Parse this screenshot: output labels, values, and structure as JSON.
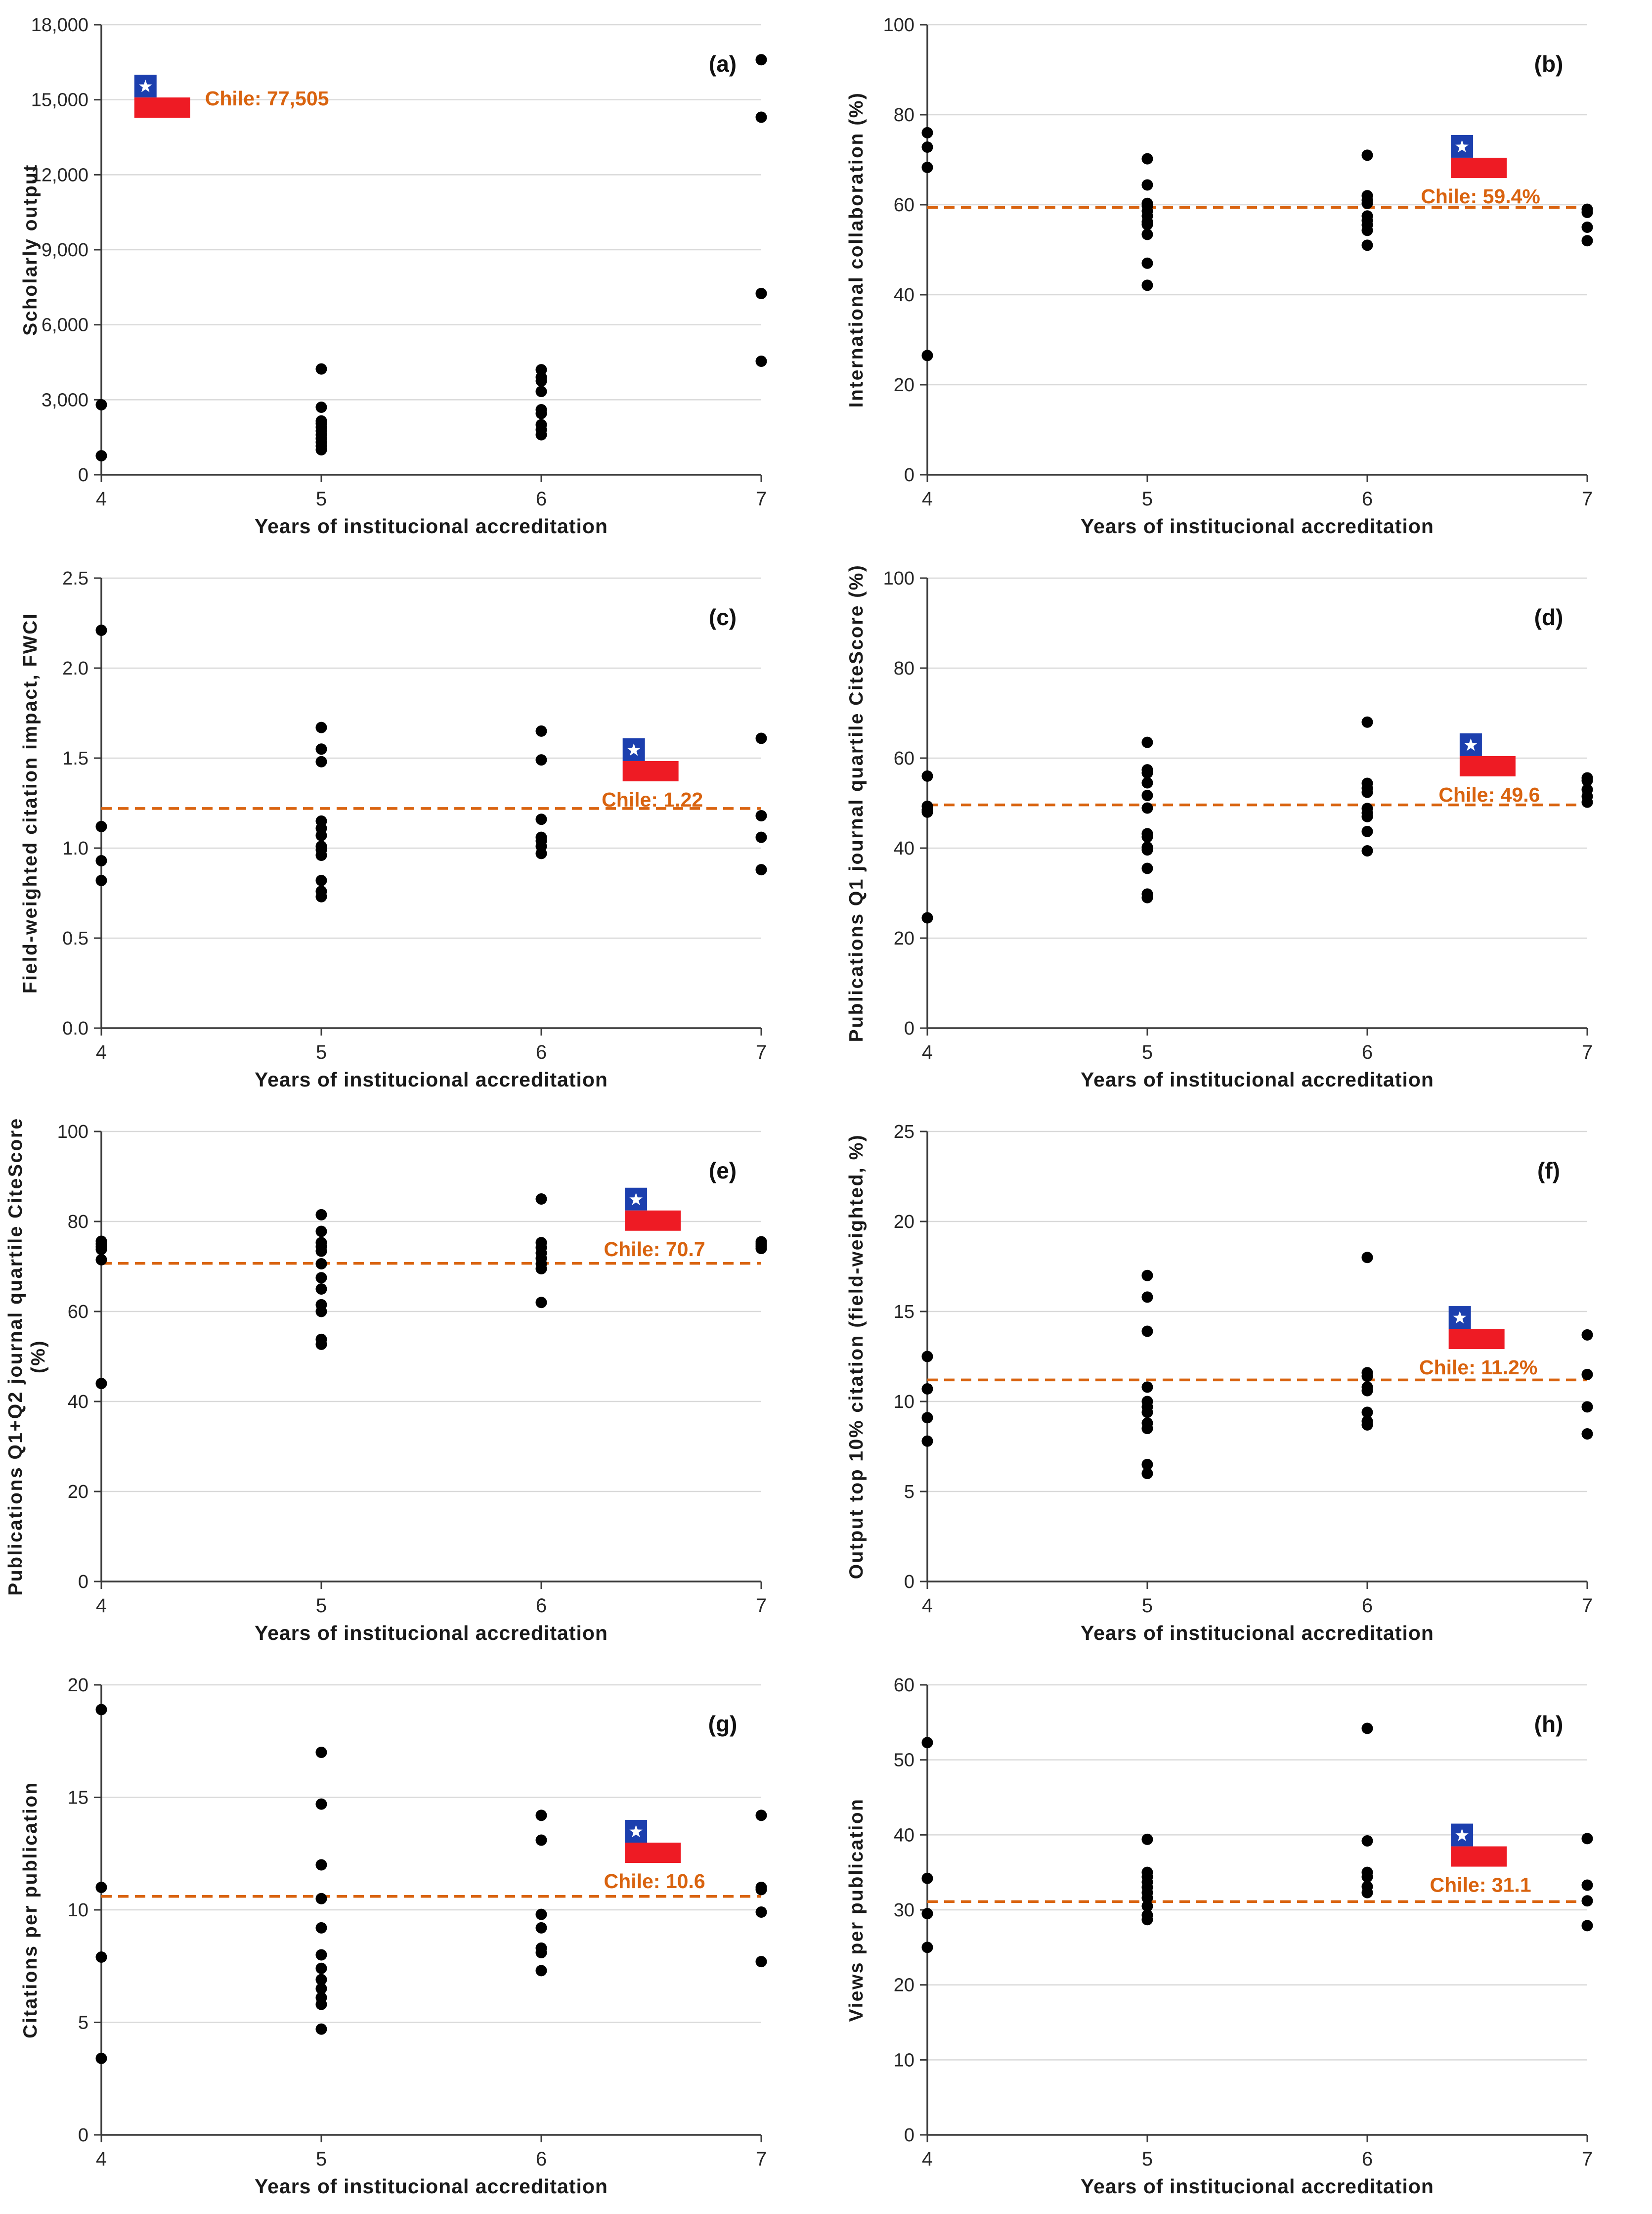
{
  "figure": {
    "x_label": "Years of institucional accreditation",
    "x_ticks": [
      4,
      5,
      6,
      7
    ],
    "xlim": [
      4,
      7
    ],
    "colors": {
      "accent_orange": "#D9630F",
      "flag_blue": "#1C3FAE",
      "flag_red": "#EE1B24",
      "point_black": "#000000",
      "grid_gray": "#D9D9D9",
      "axis_gray": "#3B3B3B",
      "text_dark": "#262626"
    }
  },
  "chart_data": [
    {
      "panel": "(a)",
      "type": "scatter",
      "ylabel": "Scholarly output",
      "ylim": [
        0,
        18000
      ],
      "ytick_step": 3000,
      "ytick_format": "comma",
      "xlabel": "Years of institucional accreditation",
      "xlim": [
        4,
        7
      ],
      "x_ticks": [
        4,
        5,
        6,
        7
      ],
      "grid": true,
      "legend": "none",
      "reference_line": null,
      "chile_label": "Chile: 77,505",
      "chile_value": 77505,
      "flag": {
        "x": 4.15,
        "y": 16000
      },
      "label_pos": "right",
      "points": {
        "4": [
          2800,
          760
        ],
        "5": [
          4230,
          2700,
          2150,
          2050,
          1900,
          1750,
          1600,
          1450,
          1300,
          1150,
          1000
        ],
        "6": [
          4200,
          3900,
          3750,
          3330,
          2600,
          2450,
          2000,
          1800,
          1600
        ],
        "7": [
          16600,
          14300,
          7250,
          4540
        ]
      }
    },
    {
      "panel": "(b)",
      "type": "scatter",
      "ylabel": "International collaboration (%)",
      "ylim": [
        0,
        100
      ],
      "ytick_step": 20,
      "ytick_format": "int",
      "xlabel": "Years of institucional accreditation",
      "xlim": [
        4,
        7
      ],
      "x_ticks": [
        4,
        5,
        6,
        7
      ],
      "grid": true,
      "legend": "none",
      "reference_line": 59.4,
      "chile_label": "Chile: 59.4%",
      "chile_value": 59.4,
      "flag": {
        "x": 6.38,
        "y": 75.5
      },
      "label_pos": "below",
      "points": {
        "4": [
          76,
          72.8,
          68.3,
          26.5
        ],
        "5": [
          70.2,
          64.4,
          60.3,
          59.7,
          58.6,
          57.5,
          56.2,
          55.6,
          53.4,
          47,
          42.1
        ],
        "6": [
          71,
          62,
          61,
          60.3,
          57.5,
          56.5,
          55.5,
          54.3,
          51
        ],
        "7": [
          59,
          58.3,
          55,
          52
        ]
      }
    },
    {
      "panel": "(c)",
      "type": "scatter",
      "ylabel": "Field-weighted citation impact, FWCI",
      "ylim": [
        0,
        2.5
      ],
      "ytick_step": 0.5,
      "ytick_format": "1dp",
      "xlabel": "Years of institucional accreditation",
      "xlim": [
        4,
        7
      ],
      "x_ticks": [
        4,
        5,
        6,
        7
      ],
      "grid": true,
      "legend": "none",
      "reference_line": 1.22,
      "chile_label": "Chile: 1.22",
      "chile_value": 1.22,
      "flag": {
        "x": 6.37,
        "y": 1.61
      },
      "label_pos": "below",
      "points": {
        "4": [
          2.21,
          1.12,
          0.93,
          0.82
        ],
        "5": [
          1.67,
          1.55,
          1.48,
          1.15,
          1.11,
          1.07,
          1.01,
          0.99,
          0.96,
          0.82,
          0.76,
          0.73
        ],
        "6": [
          1.65,
          1.49,
          1.16,
          1.06,
          1.04,
          1.01,
          0.97
        ],
        "7": [
          1.61,
          1.18,
          1.06,
          0.88
        ]
      }
    },
    {
      "panel": "(d)",
      "type": "scatter",
      "ylabel": "Publications Q1 journal quartile CiteScore (%)",
      "ylim": [
        0,
        100
      ],
      "ytick_step": 20,
      "ytick_format": "int",
      "xlabel": "Years of institucional accreditation",
      "xlim": [
        4,
        7
      ],
      "x_ticks": [
        4,
        5,
        6,
        7
      ],
      "grid": true,
      "legend": "none",
      "reference_line": 49.6,
      "chile_label": "Chile: 49.6",
      "chile_value": 49.6,
      "flag": {
        "x": 6.42,
        "y": 65.5
      },
      "label_pos": "below",
      "points": {
        "4": [
          56,
          49.3,
          48.5,
          48,
          24.5
        ],
        "5": [
          63.5,
          57.4,
          56.7,
          54.5,
          51.7,
          48.9,
          43.2,
          42.5,
          40.2,
          39.6,
          35.5,
          29.8,
          29
        ],
        "6": [
          68,
          54.4,
          53.3,
          52.4,
          48.8,
          47.8,
          47,
          43.7,
          39.4
        ],
        "7": [
          55.6,
          55,
          53,
          51.5,
          50.2
        ]
      }
    },
    {
      "panel": "(e)",
      "type": "scatter",
      "ylabel": "Publications Q1+Q2 journal quartile CiteScore\n(%)",
      "ylim": [
        0,
        100
      ],
      "ytick_step": 20,
      "ytick_format": "int",
      "xlabel": "Years of institucional accreditation",
      "xlim": [
        4,
        7
      ],
      "x_ticks": [
        4,
        5,
        6,
        7
      ],
      "grid": true,
      "legend": "none",
      "reference_line": 70.7,
      "chile_label": "Chile: 70.7",
      "chile_value": 70.7,
      "flag": {
        "x": 6.38,
        "y": 87.5
      },
      "label_pos": "below",
      "points": {
        "4": [
          75.6,
          75,
          74.4,
          73.8,
          71.5,
          44
        ],
        "5": [
          81.5,
          77.8,
          75.3,
          74.4,
          73.4,
          70.6,
          67.5,
          65,
          61.5,
          60,
          53.8,
          52.7
        ],
        "6": [
          85,
          75.3,
          74.2,
          73,
          71.8,
          70.6,
          69.5,
          62
        ],
        "7": [
          75.5,
          75,
          74.5,
          74
        ]
      }
    },
    {
      "panel": "(f)",
      "type": "scatter",
      "ylabel": "Output top 10% citation (field-weighted, %)",
      "ylim": [
        0,
        25
      ],
      "ytick_step": 5,
      "ytick_format": "int",
      "xlabel": "Years of institucional accreditation",
      "xlim": [
        4,
        7
      ],
      "x_ticks": [
        4,
        5,
        6,
        7
      ],
      "grid": true,
      "legend": "none",
      "reference_line": 11.2,
      "chile_label": "Chile: 11.2%",
      "chile_value": 11.2,
      "flag": {
        "x": 6.37,
        "y": 15.3
      },
      "label_pos": "below",
      "points": {
        "4": [
          12.5,
          10.7,
          9.1,
          7.8
        ],
        "5": [
          17,
          15.8,
          13.9,
          10.8,
          10,
          9.7,
          9.4,
          8.8,
          8.5,
          6.5,
          6
        ],
        "6": [
          18,
          11.6,
          11.4,
          10.8,
          10.6,
          9.4,
          8.9,
          8.7
        ],
        "7": [
          13.7,
          11.5,
          9.7,
          8.2
        ]
      }
    },
    {
      "panel": "(g)",
      "type": "scatter",
      "ylabel": "Citations per publication",
      "ylim": [
        0,
        20
      ],
      "ytick_step": 5,
      "ytick_format": "int",
      "xlabel": "Years of institucional accreditation",
      "xlim": [
        4,
        7
      ],
      "x_ticks": [
        4,
        5,
        6,
        7
      ],
      "grid": true,
      "legend": "none",
      "reference_line": 10.6,
      "chile_label": "Chile: 10.6",
      "chile_value": 10.6,
      "flag": {
        "x": 6.38,
        "y": 14
      },
      "label_pos": "below",
      "points": {
        "4": [
          18.9,
          11,
          7.9,
          3.4
        ],
        "5": [
          17,
          14.7,
          12,
          10.5,
          9.2,
          8,
          7.4,
          6.9,
          6.5,
          6.1,
          5.8,
          4.7
        ],
        "6": [
          14.2,
          13.1,
          9.8,
          9.2,
          8.3,
          8.1,
          7.3
        ],
        "7": [
          14.2,
          11,
          10.9,
          9.9,
          7.7
        ]
      }
    },
    {
      "panel": "(h)",
      "type": "scatter",
      "ylabel": "Views per publication",
      "ylim": [
        0,
        60
      ],
      "ytick_step": 10,
      "ytick_format": "int",
      "xlabel": "Years of institucional accreditation",
      "xlim": [
        4,
        7
      ],
      "x_ticks": [
        4,
        5,
        6,
        7
      ],
      "grid": true,
      "legend": "none",
      "reference_line": 31.1,
      "chile_label": "Chile: 31.1",
      "chile_value": 31.1,
      "flag": {
        "x": 6.38,
        "y": 41.5
      },
      "label_pos": "below",
      "points": {
        "4": [
          52.3,
          34.2,
          29.5,
          25
        ],
        "5": [
          39.4,
          35,
          34.4,
          33.7,
          33,
          32.3,
          31.6,
          30.5,
          29.3,
          28.7
        ],
        "6": [
          54.2,
          39.2,
          35,
          34.4,
          33.1,
          32.3
        ],
        "7": [
          39.5,
          33.3,
          31.2,
          27.9
        ]
      }
    }
  ]
}
